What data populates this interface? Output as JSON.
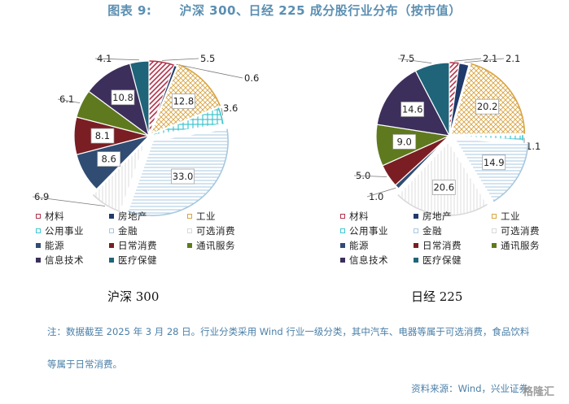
{
  "figure": {
    "title_number": "图表 9:",
    "title_text": "沪深 300、日经 225 成分股行业分布（按市值）"
  },
  "sector_styles": {
    "材料": {
      "color": "#b0324a",
      "pattern": "diag"
    },
    "房地产": {
      "color": "#1f3a6b",
      "pattern": "solid"
    },
    "工业": {
      "color": "#d9a441",
      "pattern": "cross"
    },
    "公用事业": {
      "color": "#3fc6cf",
      "pattern": "grid"
    },
    "金融": {
      "color": "#a7c8e0",
      "pattern": "hlines"
    },
    "可选消费": {
      "color": "#d9d9d9",
      "pattern": "vlines"
    },
    "能源": {
      "color": "#304c73",
      "pattern": "solid"
    },
    "日常消费": {
      "color": "#7a1e24",
      "pattern": "solid"
    },
    "通讯服务": {
      "color": "#5f7a1e",
      "pattern": "solid"
    },
    "信息技术": {
      "color": "#3d2f5b",
      "pattern": "solid"
    },
    "医疗保健": {
      "color": "#1f6478",
      "pattern": "solid"
    }
  },
  "chart_data": [
    {
      "type": "pie",
      "title": "沪深 300",
      "unit": "%",
      "legend_position": "bottom",
      "slices": [
        {
          "label": "材料",
          "value": 5.5
        },
        {
          "label": "房地产",
          "value": 0.6
        },
        {
          "label": "工业",
          "value": 12.8
        },
        {
          "label": "公用事业",
          "value": 3.6
        },
        {
          "label": "金融",
          "value": 33.0
        },
        {
          "label": "可选消费",
          "value": 6.9
        },
        {
          "label": "能源",
          "value": 8.6
        },
        {
          "label": "日常消费",
          "value": 8.1
        },
        {
          "label": "通讯服务",
          "value": 6.1
        },
        {
          "label": "信息技术",
          "value": 10.8
        },
        {
          "label": "医疗保健",
          "value": 4.1
        }
      ]
    },
    {
      "type": "pie",
      "title": "日经 225",
      "unit": "%",
      "legend_position": "bottom",
      "slices": [
        {
          "label": "材料",
          "value": 2.1
        },
        {
          "label": "房地产",
          "value": 2.1
        },
        {
          "label": "工业",
          "value": 20.2
        },
        {
          "label": "公用事业",
          "value": 1.1
        },
        {
          "label": "金融",
          "value": 14.9
        },
        {
          "label": "可选消费",
          "value": 20.6
        },
        {
          "label": "能源",
          "value": 1.0
        },
        {
          "label": "日常消费",
          "value": 5.0
        },
        {
          "label": "通讯服务",
          "value": 9.0
        },
        {
          "label": "信息技术",
          "value": 14.6
        },
        {
          "label": "医疗保健",
          "value": 7.5
        }
      ]
    }
  ],
  "legend_items": [
    "材料",
    "房地产",
    "工业",
    "公用事业",
    "金融",
    "可选消费",
    "能源",
    "日常消费",
    "通讯服务",
    "信息技术",
    "医疗保健"
  ],
  "note": "注：数据截至 2025 年 3 月 28 日。行业分类采用 Wind 行业一级分类，其中汽车、电器等属于可选消费，食品饮料等属于日常消费。",
  "source": "资料来源：Wind，兴业证券",
  "watermark": "格隆汇"
}
